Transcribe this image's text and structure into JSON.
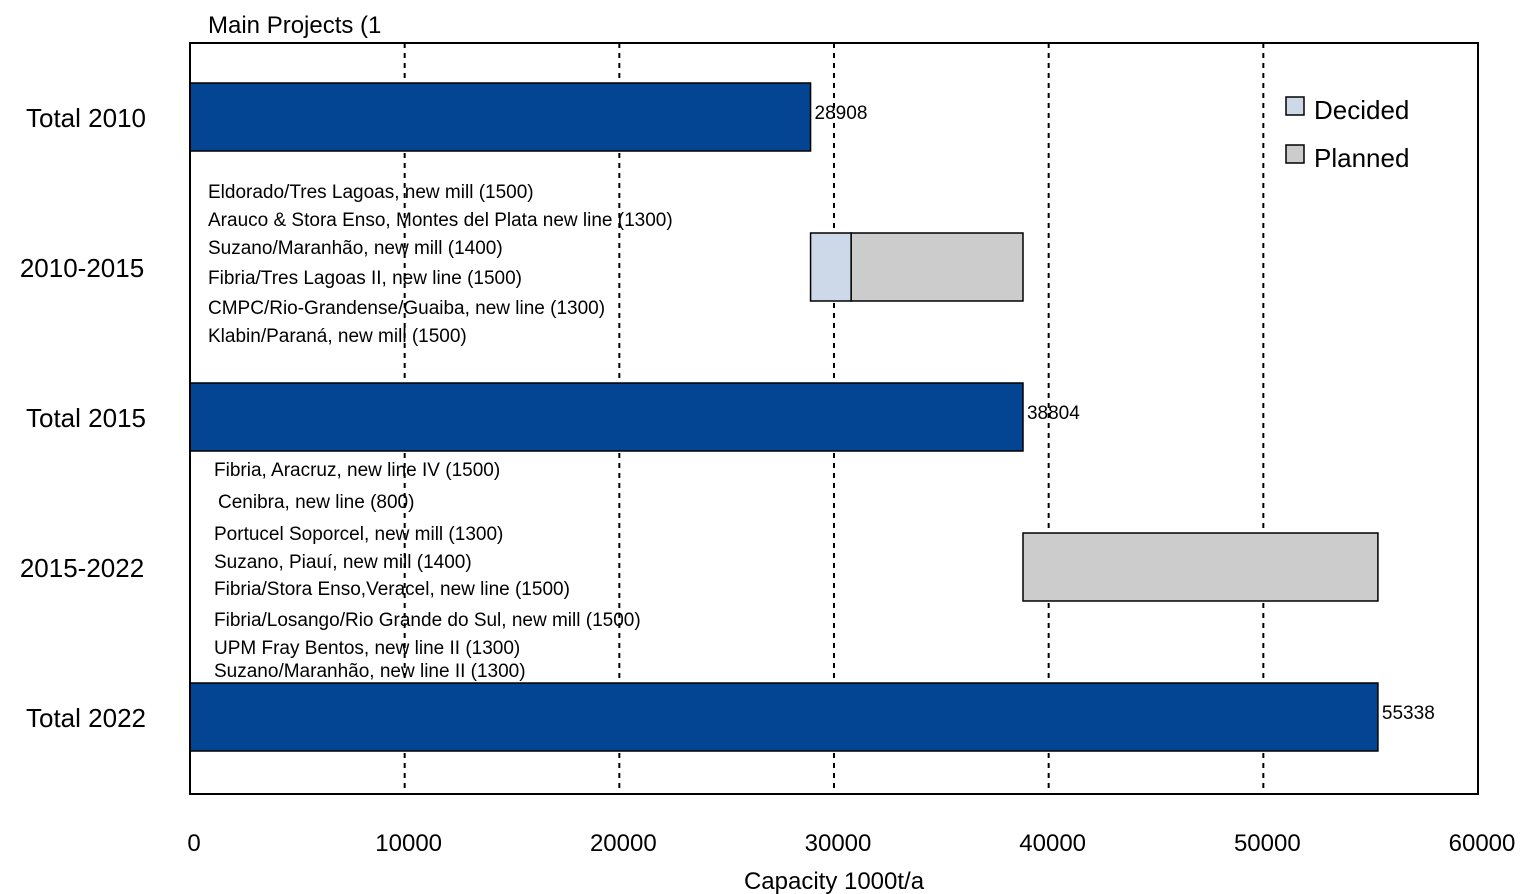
{
  "chart_data": {
    "type": "bar",
    "orientation": "horizontal",
    "subtitle": "Main Projects (1",
    "xlabel": "Capacity 1000t/a",
    "xlim": [
      0,
      60000
    ],
    "xticks": [
      "0",
      "10000",
      "20000",
      "30000",
      "40000",
      "50000",
      "60000"
    ],
    "grid": "vertical dashed",
    "legend": {
      "placement": "top-right",
      "entries": [
        {
          "name": "Decided",
          "color": "#cdd8e8"
        },
        {
          "name": "Planned",
          "color": "#cccccc"
        }
      ]
    },
    "colors": {
      "total": "#044593",
      "decided": "#cdd8e8",
      "planned": "#cccccc"
    },
    "categories": [
      "Total 2010",
      "2010-2015",
      "Total 2015",
      "2015-2022",
      "Total 2022"
    ],
    "bars": [
      {
        "category": "Total 2010",
        "kind": "total",
        "start": 0,
        "end": 28908,
        "label": "28908"
      },
      {
        "category": "2010-2015",
        "kind": "decided",
        "start": 28908,
        "end": 30800
      },
      {
        "category": "2010-2015",
        "kind": "planned",
        "start": 30800,
        "end": 38804
      },
      {
        "category": "Total 2015",
        "kind": "total",
        "start": 0,
        "end": 38804,
        "label": "38804"
      },
      {
        "category": "2015-2022",
        "kind": "planned",
        "start": 38804,
        "end": 55338
      },
      {
        "category": "Total 2022",
        "kind": "total",
        "start": 0,
        "end": 55338,
        "label": "55338"
      }
    ],
    "projects_2010_2015": [
      "Eldorado/Tres Lagoas, new mill (1500)",
      "Arauco & Stora Enso, Montes del Plata new line (1300)",
      "Suzano/Maranhão, new mill (1400)",
      "Fibria/Tres Lagoas II, new line (1500)",
      "CMPC/Rio-Grandense/Guaiba, new line (1300)",
      "Klabin/Paraná, new mill (1500)"
    ],
    "projects_2015_2022": [
      "Fibria, Aracruz, new line IV (1500)",
      "Cenibra, new line (800)",
      "Portucel Soporcel, new mill  (1300)",
      "Suzano, Piauí, new mill (1400)",
      "Fibria/Stora Enso,Veracel, new line (1500)",
      "Fibria/Losango/Rio Grande do Sul, new mill  (1500)",
      "UPM Fray Bentos, new line II (1300)",
      "Suzano/Maranhão, new line II (1300)"
    ]
  }
}
